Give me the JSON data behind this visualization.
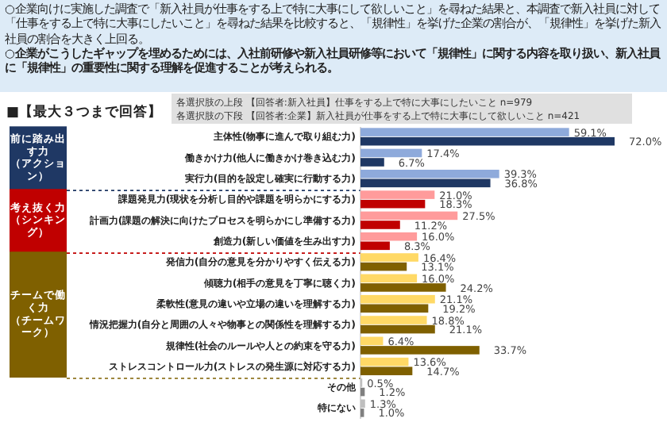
{
  "chart_data": {
    "type": "bar",
    "orientation": "horizontal",
    "title": "■【最大３つまで回答】",
    "annotations": [
      "○企業向けに実施した調査で「新入社員が仕事をする上で特に大事にして欲しいこと」を尋ねた結果と、本調査で新入社員に対して「仕事をする上で特に大事にしたいこと」を尋ねた結果を比較すると、「規律性」を挙げた企業の割合が、「規律性」を挙げた新入社員の割合を大きく上回る。",
      "○企業がこうしたギャップを埋めるためには、入社前研修や新入社員研修等において「規律性」に関する内容を取り扱い、新入社員に「規律性」の重要性に関する理解を促進することが考えられる。",
      "各選択肢の上段 【回答者:新入社員】仕事をする上で特に大事にしたいこと n=979",
      "各選択肢の下段 【回答者:企業】新入社員が仕事をする上で特に大事にして欲しいこと n=421",
      "前に踏み出す力（アクション）",
      "考え抜く力（シンキング）",
      "チームで働く力（チームワーク）"
    ],
    "categories": [
      "主体性(物事に進んで取り組む力)",
      "働きかけ力(他人に働きかけ巻き込む力)",
      "実行力(目的を設定し確実に行動する力)",
      "課題発見力(現状を分析し目的や課題を明らかにする力)",
      "計画力(課題の解決に向けたプロセスを明らかにし準備する力)",
      "創造力(新しい価値を生み出す力)",
      "発信力(自分の意見を分かりやすく伝える力)",
      "傾聴力(相手の意見を丁寧に聴く力)",
      "柔軟性(意見の違いや立場の違いを理解する力)",
      "情況把握力(自分と周囲の人々や物事との関係性を理解する力)",
      "規律性(社会のルールや人との約束を守る力)",
      "ストレスコントロール力(ストレスの発生源に対応する力)",
      "その他",
      "特にない"
    ],
    "series": [
      {
        "values": [
          59.1,
          17.4,
          39.3,
          21.0,
          27.5,
          16.0,
          16.4,
          16.0,
          21.1,
          18.8,
          6.4,
          13.6,
          0.5,
          1.3
        ],
        "value_labels": [
          "59.1%",
          "17.4%",
          "39.3%",
          "21.0%",
          "27.5%",
          "16.0%",
          "16.4%",
          "16.0%",
          "21.1%",
          "18.8%",
          "6.4%",
          "13.6%",
          "0.5%",
          "1.3%"
        ],
        "colors": [
          "#8eaadb",
          "#8eaadb",
          "#8eaadb",
          "#ff9b9b",
          "#ff9b9b",
          "#ff9b9b",
          "#ffd966",
          "#ffd966",
          "#ffd966",
          "#ffd966",
          "#ffd966",
          "#ffd966",
          "#bfbfbf",
          "#bfbfbf"
        ]
      },
      {
        "values": [
          72.0,
          6.7,
          36.8,
          18.3,
          11.2,
          8.3,
          13.1,
          24.2,
          19.2,
          21.1,
          33.7,
          14.7,
          1.2,
          1.0
        ],
        "value_labels": [
          "72.0%",
          "6.7%",
          "36.8%",
          "18.3%",
          "11.2%",
          "8.3%",
          "13.1%",
          "24.2%",
          "19.2%",
          "21.1%",
          "33.7%",
          "14.7%",
          "1.2%",
          "1.0%"
        ],
        "colors": [
          "#1f3864",
          "#1f3864",
          "#1f3864",
          "#c00000",
          "#c00000",
          "#c00000",
          "#7f6000",
          "#7f6000",
          "#7f6000",
          "#7f6000",
          "#7f6000",
          "#7f6000",
          "#808080",
          "#808080"
        ]
      }
    ]
  }
}
